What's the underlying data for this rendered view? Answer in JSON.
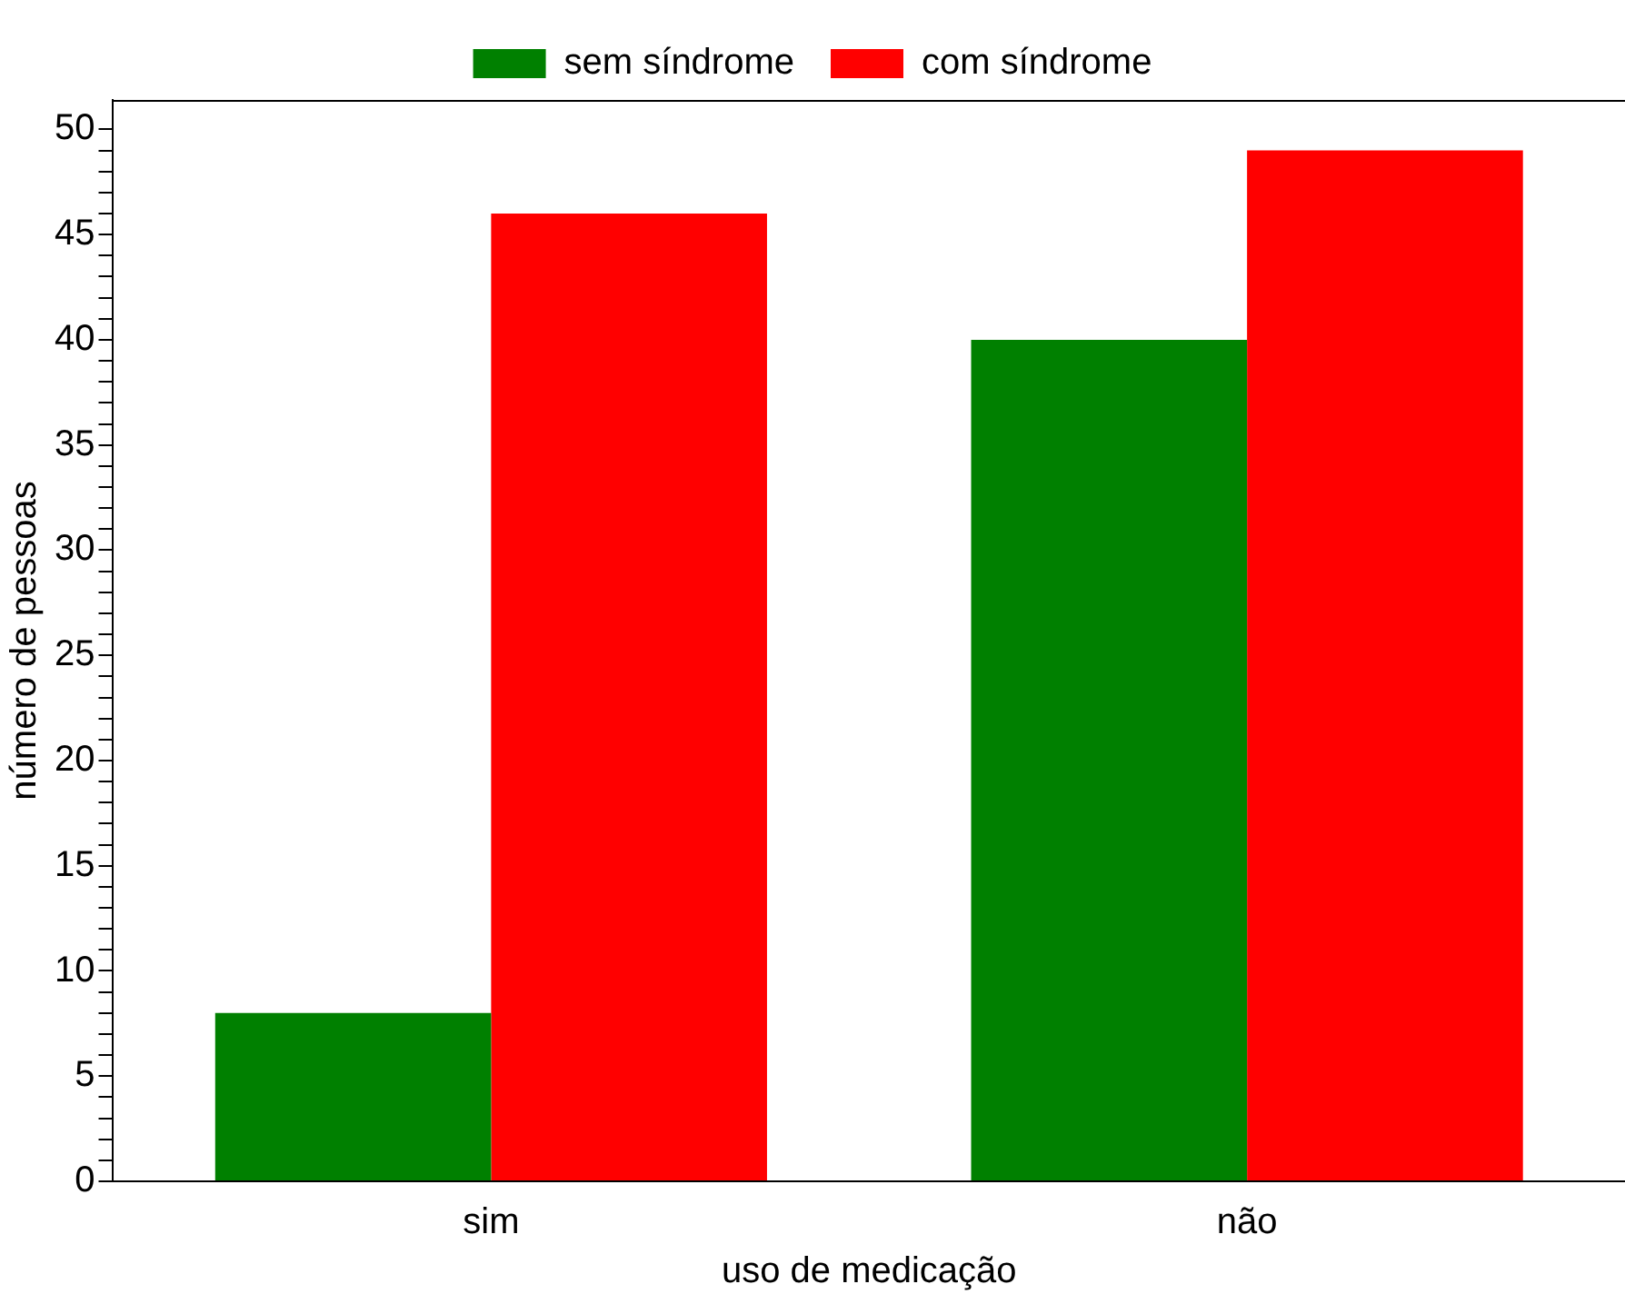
{
  "chart_data": {
    "type": "bar",
    "xlabel": "uso de medicação",
    "ylabel": "número de pessoas",
    "categories": [
      "sim",
      "não"
    ],
    "series": [
      {
        "name": "sem síndrome",
        "color": "#008000",
        "values": [
          8,
          40
        ]
      },
      {
        "name": "com síndrome",
        "color": "#ff0000",
        "values": [
          46,
          49
        ]
      }
    ],
    "ylim": [
      0,
      51.4
    ],
    "yticks": [
      0,
      {
        "value": 1,
        "label": null
      },
      {
        "value": 2,
        "label": null
      },
      {
        "value": 3,
        "label": null
      },
      {
        "value": 4,
        "label": null
      },
      5,
      {
        "value": 6,
        "label": null
      },
      {
        "value": 7,
        "label": null
      },
      {
        "value": 8,
        "label": null
      },
      {
        "value": 9,
        "label": null
      },
      10,
      {
        "value": 11,
        "label": null
      },
      {
        "value": 12,
        "label": null
      },
      {
        "value": 13,
        "label": null
      },
      {
        "value": 14,
        "label": null
      },
      15,
      {
        "value": 16,
        "label": null
      },
      {
        "value": 17,
        "label": null
      },
      {
        "value": 18,
        "label": null
      },
      {
        "value": 19,
        "label": null
      },
      20,
      {
        "value": 21,
        "label": null
      },
      {
        "value": 22,
        "label": null
      },
      {
        "value": 23,
        "label": null
      },
      {
        "value": 24,
        "label": null
      },
      25,
      {
        "value": 26,
        "label": null
      },
      {
        "value": 27,
        "label": null
      },
      {
        "value": 28,
        "label": null
      },
      {
        "value": 29,
        "label": null
      },
      30,
      {
        "value": 31,
        "label": null
      },
      {
        "value": 32,
        "label": null
      },
      {
        "value": 33,
        "label": null
      },
      {
        "value": 34,
        "label": null
      },
      35,
      {
        "value": 36,
        "label": null
      },
      {
        "value": 37,
        "label": null
      },
      {
        "value": 38,
        "label": null
      },
      {
        "value": 39,
        "label": null
      },
      40,
      {
        "value": 41,
        "label": null
      },
      {
        "value": 42,
        "label": null
      },
      {
        "value": 43,
        "label": null
      },
      {
        "value": 44,
        "label": null
      },
      45,
      {
        "value": 46,
        "label": null
      },
      {
        "value": 47,
        "label": null
      },
      {
        "value": 48,
        "label": null
      },
      {
        "value": 49,
        "label": null
      },
      50
    ],
    "legend": "top",
    "grid": false
  }
}
